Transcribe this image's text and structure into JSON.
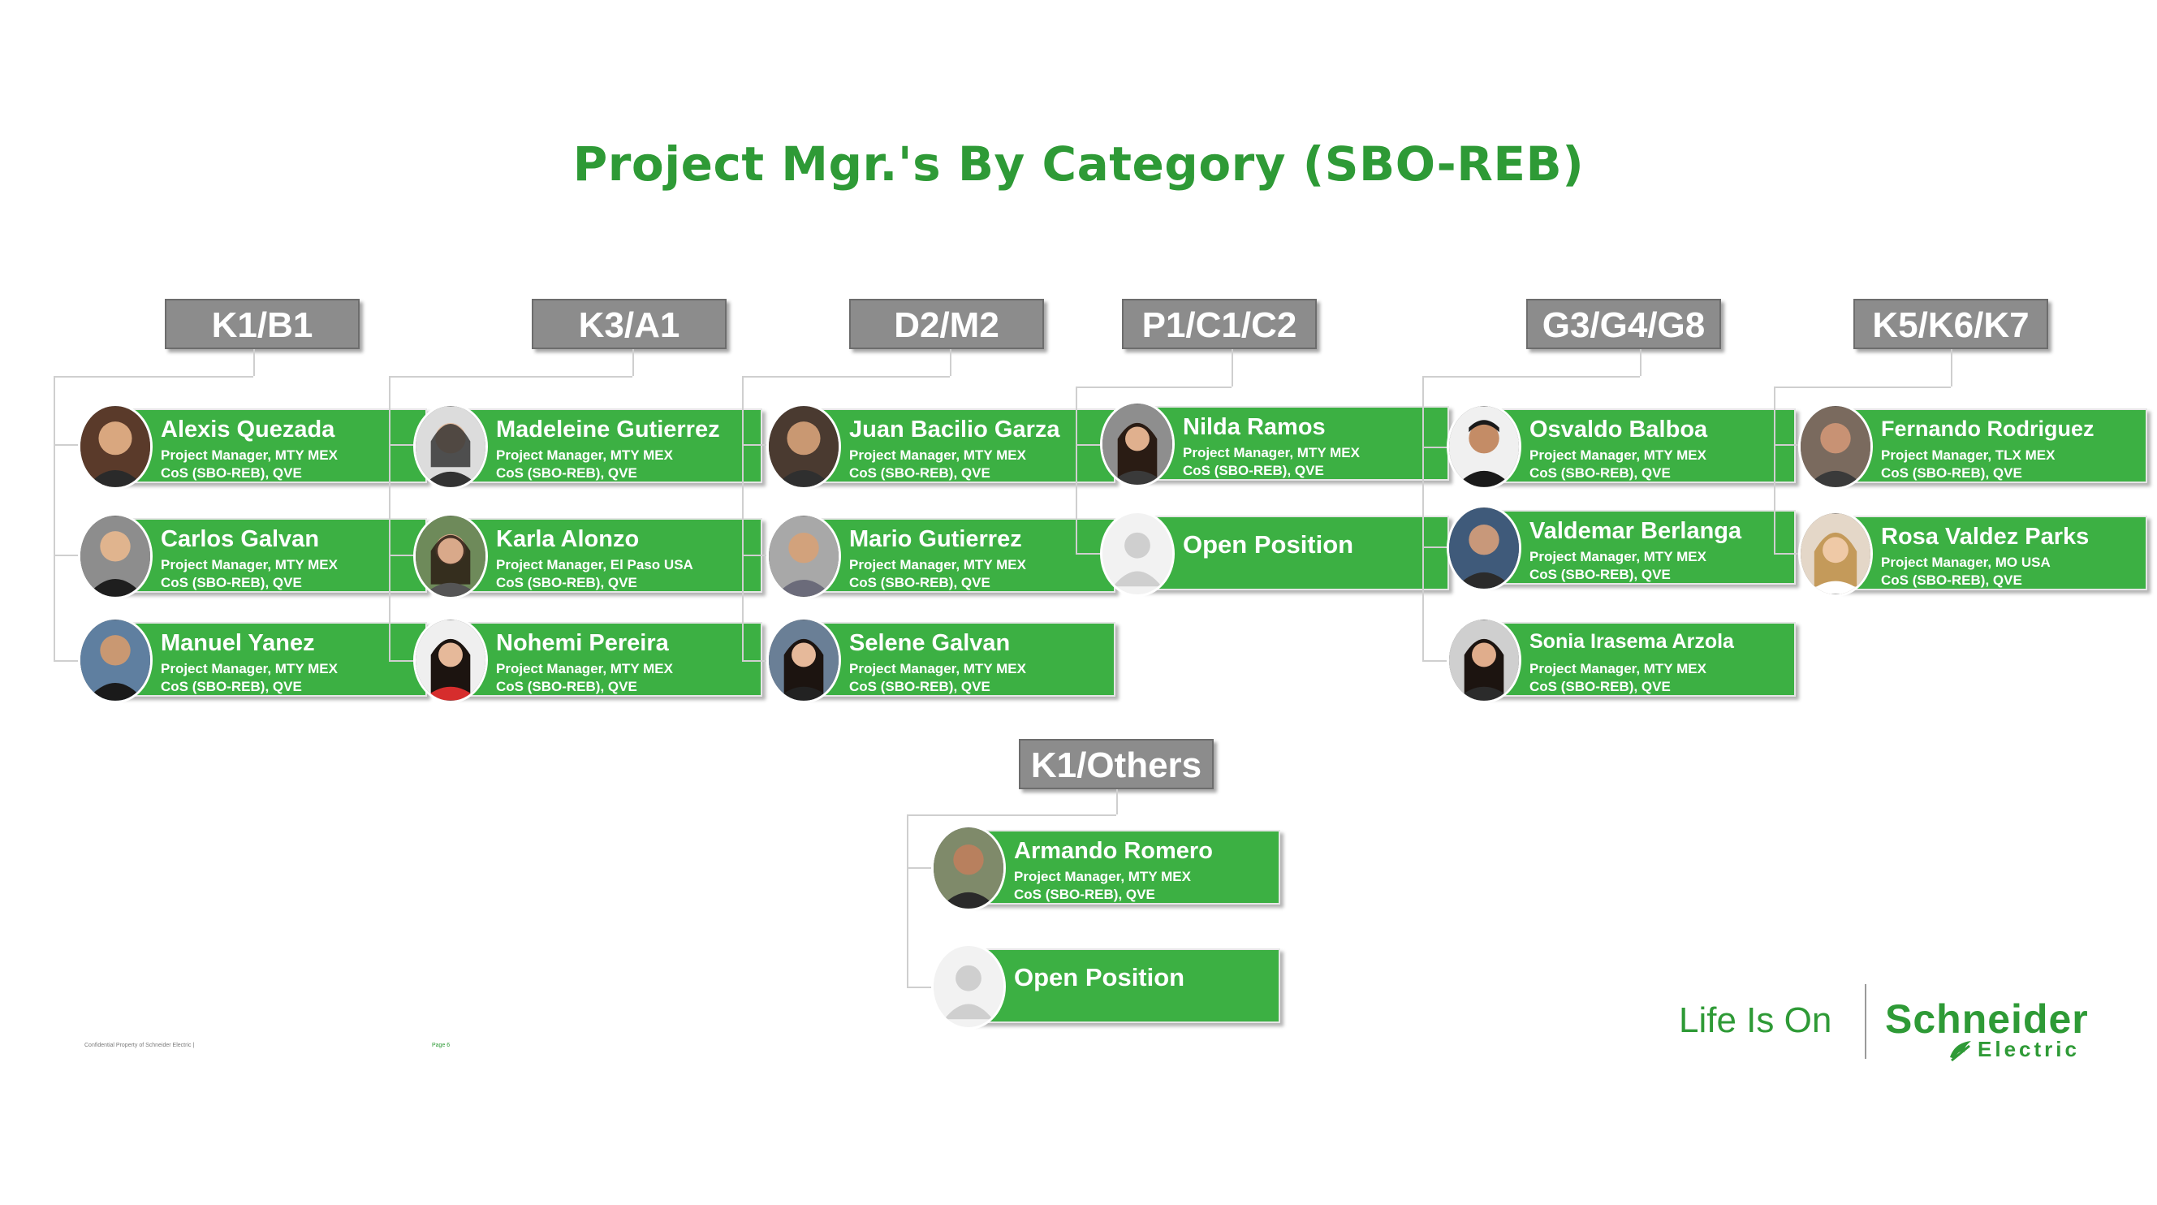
{
  "title": "Project Mgr.'s By Category (SBO-REB)",
  "columns": [
    {
      "header": "K1/B1",
      "people": [
        {
          "name": "Alexis Quezada",
          "role": "Project Manager, MTY MEX",
          "org": "CoS (SBO-REB), QVE"
        },
        {
          "name": "Carlos Galvan",
          "role": "Project Manager, MTY MEX",
          "org": "CoS (SBO-REB), QVE"
        },
        {
          "name": "Manuel Yanez",
          "role": "Project Manager, MTY MEX",
          "org": "CoS (SBO-REB), QVE"
        }
      ]
    },
    {
      "header": "K3/A1",
      "people": [
        {
          "name": "Madeleine Gutierrez",
          "role": "Project Manager, MTY MEX",
          "org": "CoS (SBO-REB), QVE"
        },
        {
          "name": "Karla Alonzo",
          "role": "Project Manager, El Paso USA",
          "org": "CoS (SBO-REB), QVE"
        },
        {
          "name": "Nohemi Pereira",
          "role": "Project Manager, MTY MEX",
          "org": "CoS (SBO-REB), QVE"
        }
      ]
    },
    {
      "header": "D2/M2",
      "people": [
        {
          "name": "Juan Bacilio Garza",
          "role": "Project Manager, MTY MEX",
          "org": "CoS (SBO-REB), QVE"
        },
        {
          "name": "Mario Gutierrez",
          "role": "Project Manager, MTY MEX",
          "org": "CoS (SBO-REB), QVE"
        },
        {
          "name": "Selene Galvan",
          "role": "Project Manager, MTY MEX",
          "org": "CoS (SBO-REB), QVE"
        }
      ]
    },
    {
      "header": "P1/C1/C2",
      "people": [
        {
          "name": "Nilda Ramos",
          "role": "Project Manager, MTY MEX",
          "org": "CoS (SBO-REB), QVE"
        },
        {
          "name": "Open Position",
          "role": "",
          "org": ""
        }
      ]
    },
    {
      "header": "G3/G4/G8",
      "people": [
        {
          "name": "Osvaldo Balboa",
          "role": "Project Manager, MTY MEX",
          "org": "CoS (SBO-REB), QVE"
        },
        {
          "name": "Valdemar Berlanga",
          "role": "Project Manager, MTY MEX",
          "org": "CoS (SBO-REB), QVE"
        },
        {
          "name": "Sonia Irasema Arzola",
          "role": "Project Manager, MTY MEX",
          "org": "CoS (SBO-REB), QVE"
        }
      ]
    },
    {
      "header": "K5/K6/K7",
      "people": [
        {
          "name": "Fernando Rodriguez",
          "role": "Project Manager, TLX MEX",
          "org": "CoS (SBO-REB), QVE"
        },
        {
          "name": "Rosa Valdez Parks",
          "role": "Project Manager, MO USA",
          "org": "CoS (SBO-REB), QVE"
        }
      ]
    },
    {
      "header": "K1/Others",
      "people": [
        {
          "name": "Armando Romero",
          "role": "Project Manager, MTY MEX",
          "org": "CoS (SBO-REB), QVE"
        },
        {
          "name": "Open Position",
          "role": "",
          "org": ""
        }
      ]
    }
  ],
  "footer": {
    "confidential": "Confidential Property of Schneider Electric |",
    "page": "Page 6"
  },
  "branding": {
    "tagline": "Life Is On",
    "company_line1": "Schneider",
    "company_line2": "Electric"
  },
  "colors": {
    "title": "#2e9a36",
    "card": "#3cb043",
    "header": "#8c8c8c"
  }
}
